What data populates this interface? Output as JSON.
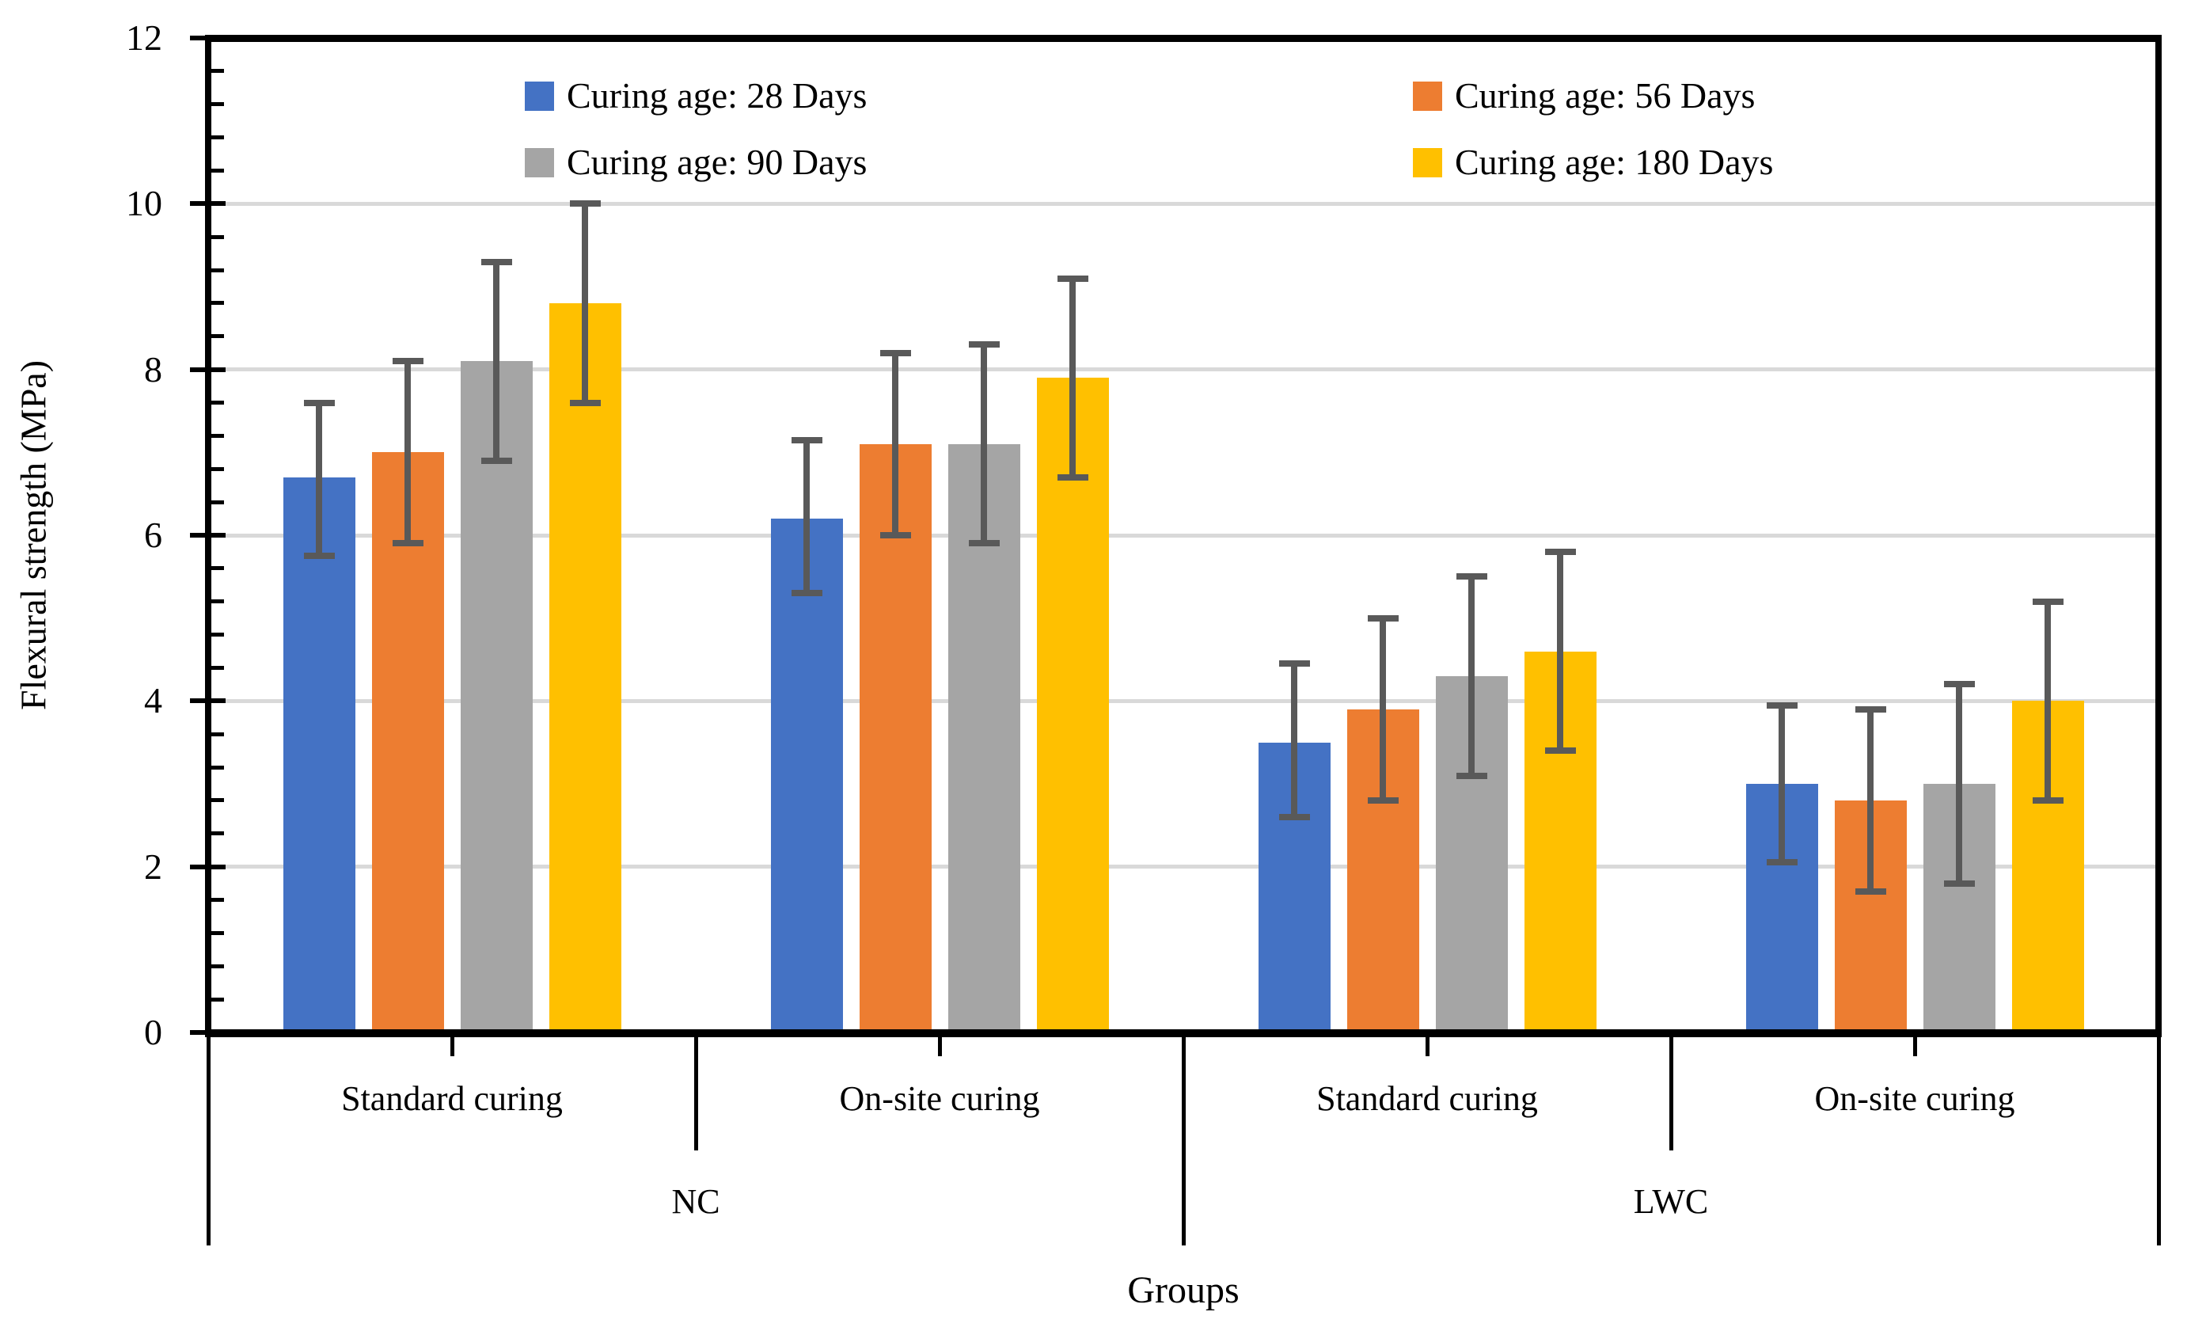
{
  "chart_data": {
    "type": "bar",
    "title": "",
    "xlabel": "Groups",
    "ylabel": "Flexural strength (MPa)",
    "ylim": [
      0,
      12
    ],
    "y_major_ticks": [
      0,
      2,
      4,
      6,
      8,
      10,
      12
    ],
    "y_minor_unit": 0.4,
    "grid": true,
    "gridline_color": "#D9D9D9",
    "error_bar_color": "#595959",
    "legend_position": "top",
    "groups": [
      {
        "label": "NC",
        "subgroups": [
          "Standard curing",
          "On-site curing"
        ]
      },
      {
        "label": "LWC",
        "subgroups": [
          "Standard curing",
          "On-site curing"
        ]
      }
    ],
    "categories": [
      "NC / Standard curing",
      "NC / On-site curing",
      "LWC / Standard curing",
      "LWC / On-site curing"
    ],
    "series": [
      {
        "name": "Curing age: 28 Days",
        "color": "#4472C4",
        "values": [
          6.7,
          6.2,
          3.5,
          3.0
        ],
        "error_low": [
          5.75,
          5.3,
          2.6,
          2.05
        ],
        "error_high": [
          7.6,
          7.15,
          4.45,
          3.95
        ]
      },
      {
        "name": "Curing age: 56 Days",
        "color": "#ED7D31",
        "values": [
          7.0,
          7.1,
          3.9,
          2.8
        ],
        "error_low": [
          5.9,
          6.0,
          2.8,
          1.7
        ],
        "error_high": [
          8.1,
          8.2,
          5.0,
          3.9
        ]
      },
      {
        "name": "Curing age: 90 Days",
        "color": "#A5A5A5",
        "values": [
          8.1,
          7.1,
          4.3,
          3.0
        ],
        "error_low": [
          6.9,
          5.9,
          3.1,
          1.8
        ],
        "error_high": [
          9.3,
          8.3,
          5.5,
          4.2
        ]
      },
      {
        "name": "Curing age: 180 Days",
        "color": "#FFC000",
        "values": [
          8.8,
          7.9,
          4.6,
          4.0
        ],
        "error_low": [
          7.6,
          6.7,
          3.4,
          2.8
        ],
        "error_high": [
          10.0,
          9.1,
          5.8,
          5.2
        ]
      }
    ]
  }
}
